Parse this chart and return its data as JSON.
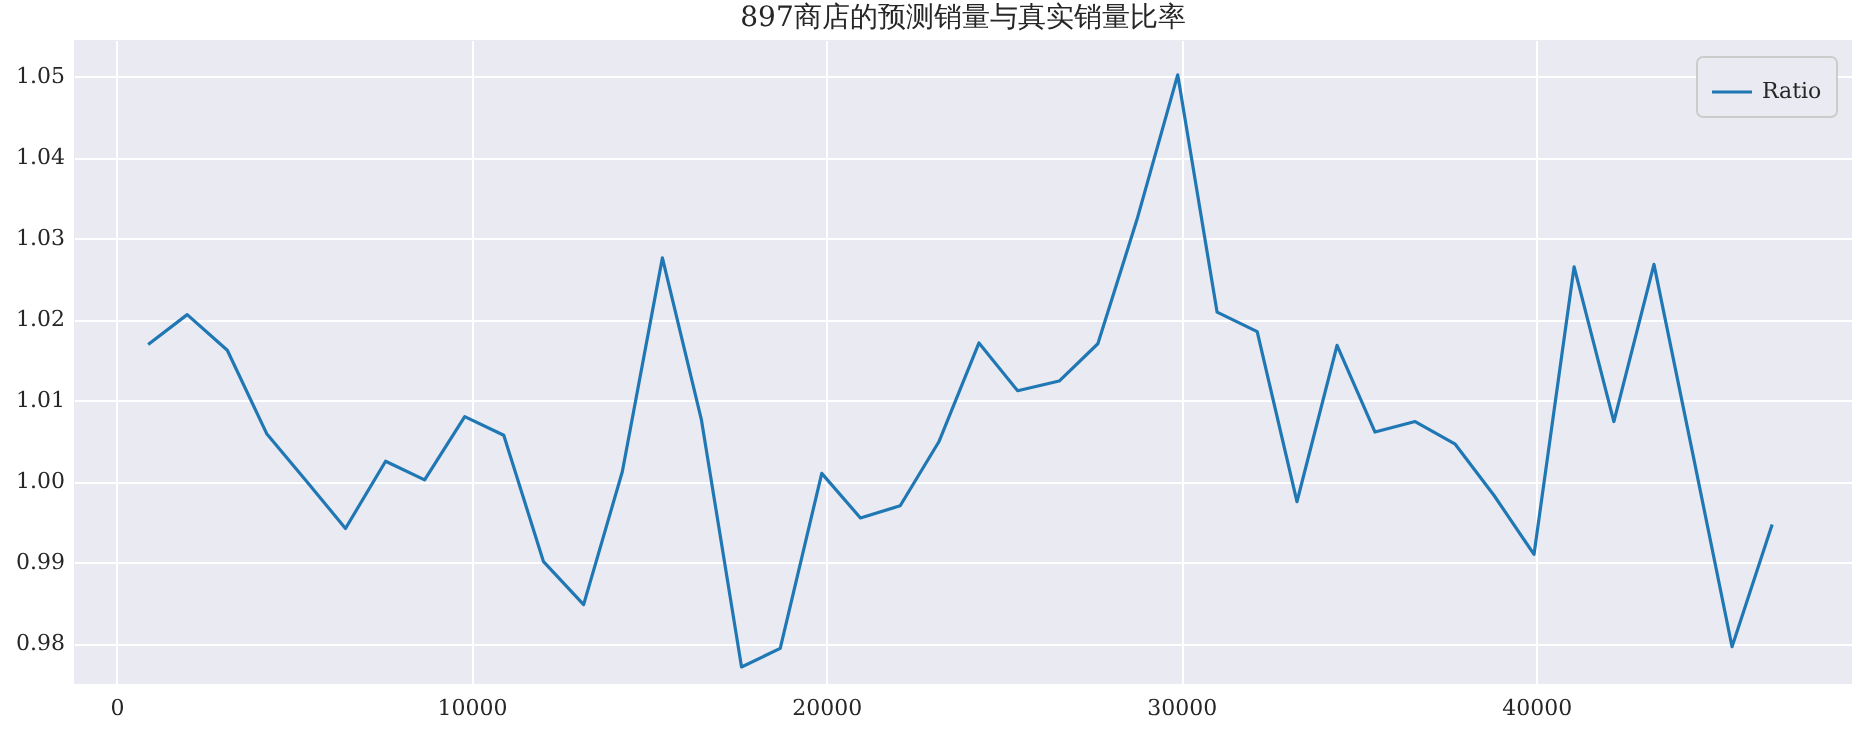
{
  "chart_data": {
    "type": "line",
    "title": "897商店的预测销量与真实销量比率",
    "x": [
      890,
      1990,
      3120,
      4230,
      5340,
      6450,
      7580,
      8680,
      9810,
      10910,
      12030,
      13160,
      14250,
      15380,
      16480,
      17610,
      18700,
      19870,
      20960,
      22080,
      23170,
      24300,
      25390,
      26560,
      27650,
      28750,
      29900,
      31010,
      32140,
      33260,
      34390,
      35460,
      36590,
      37720,
      38810,
      39940,
      41070,
      42190,
      43320,
      44410,
      45520,
      46650
    ],
    "series": [
      {
        "name": "Ratio",
        "color": "#1f77b4",
        "values": [
          1.0169,
          1.0206,
          1.0162,
          1.0059,
          1.0001,
          0.9942,
          1.0025,
          1.0002,
          1.008,
          1.0057,
          0.9901,
          0.9848,
          1.0012,
          1.0276,
          1.0076,
          0.9771,
          0.9794,
          1.001,
          0.9955,
          0.997,
          1.0049,
          1.0171,
          1.0112,
          1.0124,
          1.017,
          1.0323,
          1.0502,
          1.0209,
          1.0185,
          0.9975,
          1.0168,
          1.0061,
          1.0074,
          1.0046,
          0.9983,
          0.991,
          1.0265,
          1.0074,
          1.0268,
          1.0035,
          0.9796,
          0.9947
        ]
      }
    ],
    "xlim": [
      -1200,
      48900
    ],
    "ylim": [
      0.975,
      1.0545
    ],
    "xticks": [
      0,
      10000,
      20000,
      30000,
      40000
    ],
    "yticks": [
      0.98,
      0.99,
      {
        "value": 1,
        "label": "1.00"
      },
      1.01,
      1.02,
      1.03,
      1.04,
      1.05
    ],
    "grid": true,
    "legend": "top right",
    "line_style": "solid"
  }
}
